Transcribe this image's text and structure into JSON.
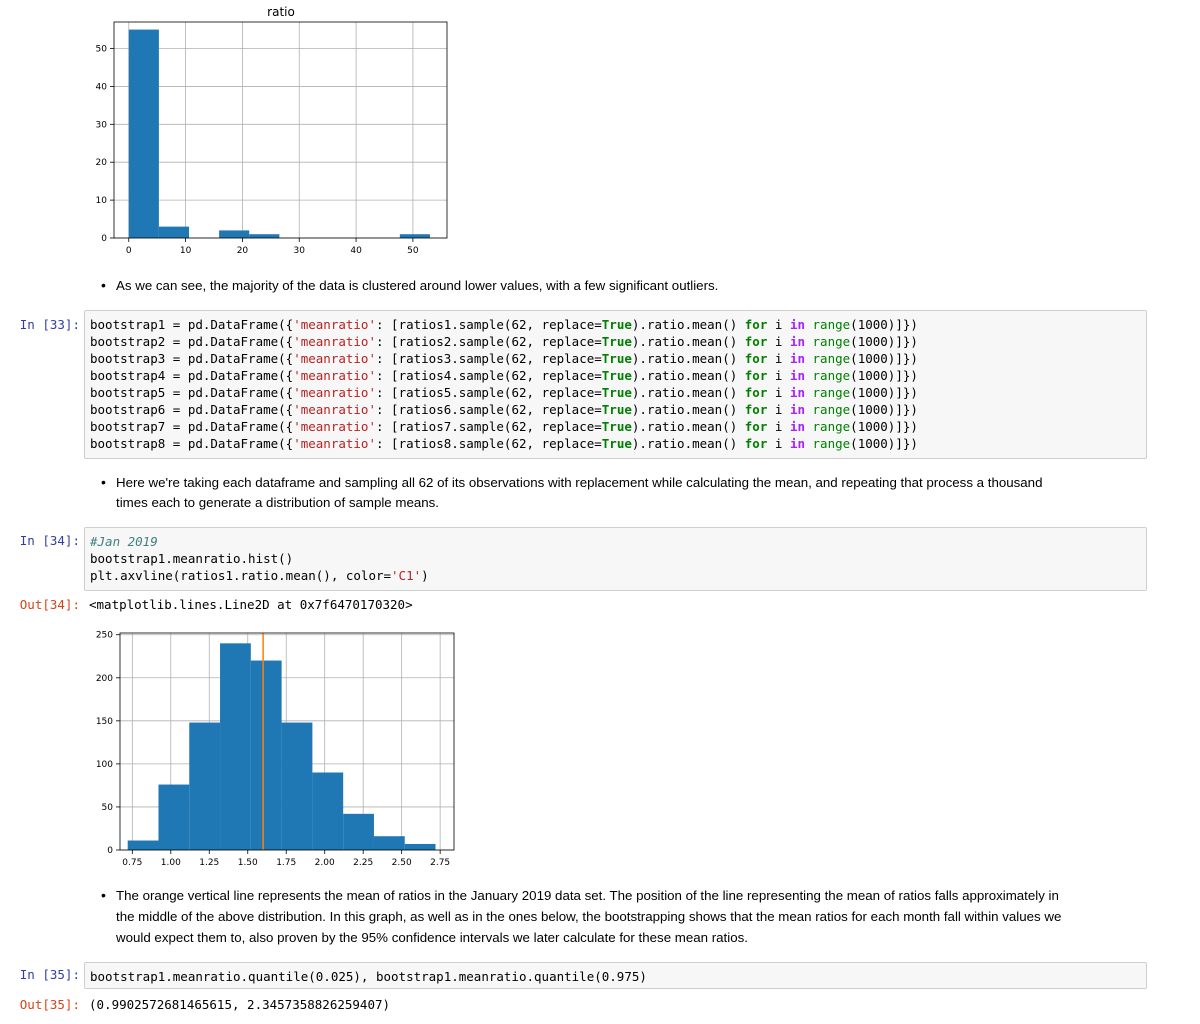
{
  "hist1": {
    "title": "ratio",
    "yticks": [
      "50",
      "40",
      "30",
      "20",
      "10",
      "0"
    ],
    "xticks": [
      "0",
      "10",
      "20",
      "30",
      "40",
      "50"
    ]
  },
  "notes": {
    "note1": "As we can see, the majority of the data is clustered around lower values, with a few significant outliers.",
    "note2a": "Here we're taking each dataframe and sampling all 62 of its observations with replacement while calculating the mean, and repeating that process a thousand",
    "note2b": "times each to generate a distribution of sample means.",
    "note3a": "The orange vertical line represents the mean of ratios in the January 2019 data set. The position of the line representing the mean of ratios falls approximately in",
    "note3b": "the middle of the above distribution. In this graph, as well as in the ones below, the bootstrapping shows that the mean ratios for each month fall within values we",
    "note3c": "would expect them to, also proven by the 95% confidence intervals we later calculate for these mean ratios."
  },
  "cells": {
    "in33": "In [33]:",
    "in34": "In [34]:",
    "out34": "Out[34]:",
    "in35": "In [35]:",
    "out35": "Out[35]:",
    "c33_nums": [
      "1",
      "2",
      "3",
      "4",
      "5",
      "6",
      "7",
      "8"
    ],
    "c34_comment": "#Jan 2019",
    "c34_line2": "bootstrap1.meanratio.hist()",
    "c34_line3a": "plt.axvline(ratios1.ratio.mean(), color=",
    "c34_line3s": "'C1'",
    "c34_line3b": ")",
    "out34_text": "<matplotlib.lines.Line2D at 0x7f6470170320>",
    "c35_code": "bootstrap1.meanratio.quantile(0.025), bootstrap1.meanratio.quantile(0.975)",
    "out35_text": "(0.9902572681465615, 2.3457358826259407)"
  },
  "chart_data": [
    {
      "type": "bar",
      "title": "ratio",
      "xlabel": "",
      "ylabel": "",
      "xlim": [
        -2.6,
        56
      ],
      "ylim": [
        0,
        57
      ],
      "grid": true,
      "bins": [
        {
          "x0": 0.0,
          "x1": 5.3,
          "count": 55
        },
        {
          "x0": 5.3,
          "x1": 10.6,
          "count": 3
        },
        {
          "x0": 10.6,
          "x1": 15.9,
          "count": 0
        },
        {
          "x0": 15.9,
          "x1": 21.2,
          "count": 2
        },
        {
          "x0": 21.2,
          "x1": 26.5,
          "count": 1
        },
        {
          "x0": 26.5,
          "x1": 31.8,
          "count": 0
        },
        {
          "x0": 31.8,
          "x1": 37.1,
          "count": 0
        },
        {
          "x0": 37.1,
          "x1": 42.4,
          "count": 0
        },
        {
          "x0": 42.4,
          "x1": 47.7,
          "count": 0
        },
        {
          "x0": 47.7,
          "x1": 53.0,
          "count": 1
        }
      ],
      "color": "#1f77b4"
    },
    {
      "type": "bar",
      "title": "",
      "xlabel": "",
      "ylabel": "",
      "xlim": [
        0.67,
        2.84
      ],
      "ylim": [
        0,
        252
      ],
      "grid": true,
      "bins": [
        {
          "x0": 0.72,
          "x1": 0.92,
          "count": 11
        },
        {
          "x0": 0.92,
          "x1": 1.12,
          "count": 76
        },
        {
          "x0": 1.12,
          "x1": 1.32,
          "count": 148
        },
        {
          "x0": 1.32,
          "x1": 1.52,
          "count": 240
        },
        {
          "x0": 1.52,
          "x1": 1.72,
          "count": 220
        },
        {
          "x0": 1.72,
          "x1": 1.92,
          "count": 148
        },
        {
          "x0": 1.92,
          "x1": 2.12,
          "count": 90
        },
        {
          "x0": 2.12,
          "x1": 2.32,
          "count": 42
        },
        {
          "x0": 2.32,
          "x1": 2.52,
          "count": 16
        },
        {
          "x0": 2.52,
          "x1": 2.72,
          "count": 7
        }
      ],
      "vline": 1.6,
      "yticks": [
        "250",
        "200",
        "150",
        "100",
        "50",
        "0"
      ],
      "xticks": [
        "0.75",
        "1.00",
        "1.25",
        "1.50",
        "1.75",
        "2.00",
        "2.25",
        "2.50",
        "2.75"
      ],
      "color": "#1f77b4",
      "vline_color": "#ff7f0e"
    }
  ]
}
